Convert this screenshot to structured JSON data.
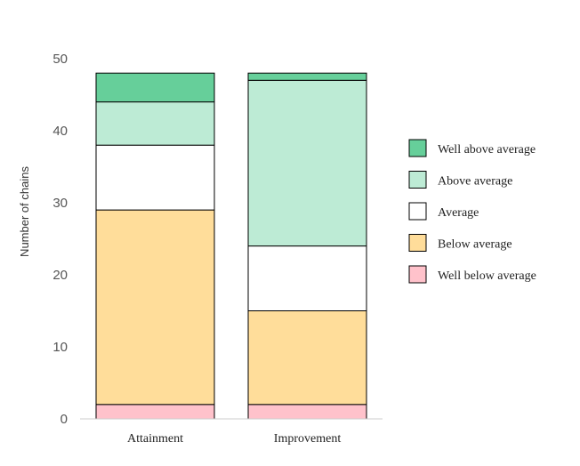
{
  "chart_data": {
    "type": "bar",
    "stacked": true,
    "categories": [
      "Attainment",
      "Improvement"
    ],
    "series": [
      {
        "name": "Well below average",
        "color": "#ffc2cb",
        "values": [
          2,
          2
        ]
      },
      {
        "name": "Below average",
        "color": "#ffdd9a",
        "values": [
          27,
          13
        ]
      },
      {
        "name": "Average",
        "color": "#ffffff",
        "values": [
          9,
          9
        ]
      },
      {
        "name": "Above average",
        "color": "#bdebd5",
        "values": [
          6,
          23
        ]
      },
      {
        "name": "Well above average",
        "color": "#66cf9a",
        "values": [
          4,
          1
        ]
      }
    ],
    "ylabel": "Number of chains",
    "xlabel": "",
    "ylim": [
      0,
      50
    ],
    "yticks": [
      0,
      10,
      20,
      30,
      40,
      50
    ],
    "grid": false,
    "legend_position": "right",
    "legend_order": [
      "Well above average",
      "Above average",
      "Average",
      "Below average",
      "Well below average"
    ]
  }
}
